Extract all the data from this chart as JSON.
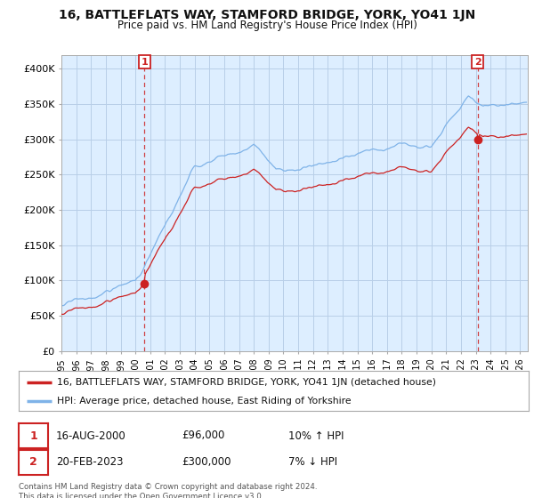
{
  "title": "16, BATTLEFLATS WAY, STAMFORD BRIDGE, YORK, YO41 1JN",
  "subtitle": "Price paid vs. HM Land Registry's House Price Index (HPI)",
  "ylabel_ticks": [
    "£0",
    "£50K",
    "£100K",
    "£150K",
    "£200K",
    "£250K",
    "£300K",
    "£350K",
    "£400K"
  ],
  "ytick_values": [
    0,
    50000,
    100000,
    150000,
    200000,
    250000,
    300000,
    350000,
    400000
  ],
  "ylim": [
    0,
    420000
  ],
  "xlim_start": 1995.0,
  "xlim_end": 2026.5,
  "sale1_date": 2000.62,
  "sale1_price": 96000,
  "sale2_date": 2023.13,
  "sale2_price": 300000,
  "hpi_color": "#7fb3e8",
  "price_color": "#cc2222",
  "legend_label1": "16, BATTLEFLATS WAY, STAMFORD BRIDGE, YORK, YO41 1JN (detached house)",
  "legend_label2": "HPI: Average price, detached house, East Riding of Yorkshire",
  "plot_bg_color": "#ddeeff",
  "background_color": "#ffffff",
  "grid_color": "#b8cfe8",
  "title_fontsize": 10,
  "subtitle_fontsize": 9
}
